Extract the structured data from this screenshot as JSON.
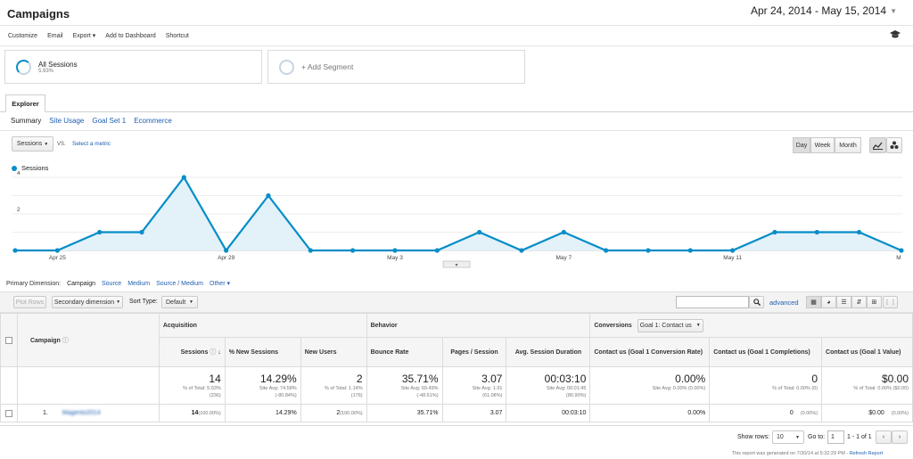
{
  "header": {
    "title": "Campaigns",
    "date_range": "Apr 24, 2014 - May 15, 2014"
  },
  "toolbar": {
    "items": [
      "Customize",
      "Email",
      "Export ▾",
      "Add to Dashboard",
      "Shortcut"
    ]
  },
  "segments": {
    "all_sessions": "All Sessions",
    "all_sessions_pct": "5.93%",
    "add_segment": "+ Add Segment"
  },
  "explorer": {
    "tab": "Explorer",
    "subtabs": [
      "Summary",
      "Site Usage",
      "Goal Set 1",
      "Ecommerce"
    ]
  },
  "chart_controls": {
    "metric": "Sessions",
    "vs": "VS.",
    "select_metric": "Select a metric",
    "ranges": [
      "Day",
      "Week",
      "Month"
    ]
  },
  "chart_data": {
    "type": "area",
    "series": [
      {
        "name": "Sessions",
        "values": [
          0,
          0,
          1,
          1,
          4,
          0,
          3,
          0,
          0,
          0,
          0,
          1,
          0,
          1,
          0,
          0,
          0,
          0,
          1,
          1,
          1,
          0
        ]
      }
    ],
    "x": [
      "Apr 24",
      "Apr 25",
      "Apr 26",
      "Apr 27",
      "Apr 28",
      "Apr 29",
      "Apr 30",
      "May 1",
      "May 2",
      "May 3",
      "May 4",
      "May 5",
      "May 6",
      "May 7",
      "May 8",
      "May 9",
      "May 10",
      "May 11",
      "May 12",
      "May 13",
      "May 14",
      "May 15"
    ],
    "x_tick_labels": [
      "Apr 25",
      "Apr 29",
      "May 3",
      "May 7",
      "May 11",
      "M"
    ],
    "y_ticks": [
      "4",
      "2"
    ],
    "ylim": [
      0,
      4
    ],
    "color": "#058dc7",
    "grid": true,
    "legend": "top-left"
  },
  "dimension": {
    "label": "Primary Dimension:",
    "options": [
      "Campaign",
      "Source",
      "Medium",
      "Source / Medium",
      "Other ▾"
    ]
  },
  "table_controls": {
    "plot_rows": "Plot Rows",
    "secondary": "Secondary dimension",
    "sort_type_label": "Sort Type:",
    "sort_type": "Default",
    "advanced": "advanced"
  },
  "table": {
    "group_headers": {
      "acquisition": "Acquisition",
      "behavior": "Behavior",
      "conversions": "Conversions",
      "goal": "Goal 1: Contact us"
    },
    "campaign_header": "Campaign",
    "columns": [
      "Sessions",
      "% New Sessions",
      "New Users",
      "Bounce Rate",
      "Pages / Session",
      "Avg. Session Duration",
      "Contact us (Goal 1 Conversion Rate)",
      "Contact us (Goal 1 Completions)",
      "Contact us (Goal 1 Value)"
    ],
    "totals": [
      {
        "big": "14",
        "s1": "% of Total: 5.93%",
        "s2": "(236)"
      },
      {
        "big": "14.29%",
        "s1": "Site Avg: 74.58%",
        "s2": "(-80.84%)"
      },
      {
        "big": "2",
        "s1": "% of Total: 1.14%",
        "s2": "(176)"
      },
      {
        "big": "35.71%",
        "s1": "Site Avg: 69.49%",
        "s2": "(-48.61%)"
      },
      {
        "big": "3.07",
        "s1": "Site Avg: 1.91",
        "s2": "(61.08%)"
      },
      {
        "big": "00:03:10",
        "s1": "Site Avg: 00:01:45",
        "s2": "(80.90%)"
      },
      {
        "big": "0.00%",
        "s1": "Site Avg: 0.00% (0.00%)",
        "s2": ""
      },
      {
        "big": "0",
        "s1": "% of Total: 0.00% (0)",
        "s2": ""
      },
      {
        "big": "$0.00",
        "s1": "% of Total: 0.00% ($0.00)",
        "s2": ""
      }
    ],
    "row": {
      "index": "1.",
      "campaign": "Magento2014",
      "cells": [
        "14",
        "14.29%",
        "2",
        "35.71%",
        "3.07",
        "00:03:10",
        "0.00%",
        "0",
        "$0.00"
      ],
      "notes": [
        "(100.00%)",
        "",
        "(100.00%)",
        "",
        "",
        "",
        "",
        "(0.00%)",
        "(0.00%)"
      ]
    }
  },
  "footer": {
    "show_rows_label": "Show rows:",
    "show_rows": "10",
    "goto_label": "Go to:",
    "goto": "1",
    "range": "1 - 1 of 1",
    "generated": "This report was generated on 7/30/14 at 5:32:29 PM -",
    "refresh": "Refresh Report"
  }
}
